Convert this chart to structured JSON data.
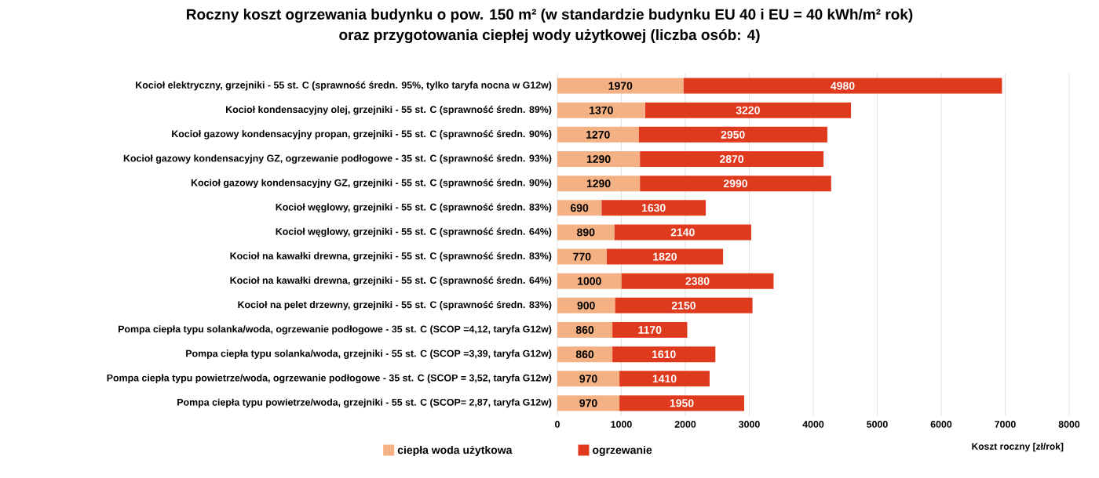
{
  "chart_data": {
    "type": "bar",
    "orientation": "horizontal",
    "stacked": true,
    "title": "Roczny koszt ogrzewania budynku o pow. 150 m²  (w standardzie budynku EU 40 i EU = 40 kWh/m² rok)",
    "subtitle": "oraz przygotowania ciepłej wody użytkowej (liczba osób: 4)",
    "xlabel": "Koszt roczny [zł/rok]",
    "categories": [
      "Kocioł  elektryczny,  grzejniki - 55 st. C  (sprawność średn. 95%, tylko taryfa nocna w G12w)",
      "Kocioł  kondensacyjny olej,  grzejniki - 55 st. C (sprawność średn. 89%)",
      "Kocioł gazowy kondensacyjny propan, grzejniki - 55 st. C (sprawność średn. 90%)",
      "Kocioł gazowy kondensacyjny GZ, ogrzewanie podłogowe - 35 st. C (sprawność średn. 93%)",
      "Kocioł gazowy kondensacyjny GZ, grzejniki - 55 st. C (sprawność średn. 90%)",
      "Kocioł węglowy,  grzejniki - 55 st. C (sprawność średn. 83%)",
      "Kocioł węglowy,  grzejniki - 55 st. C (sprawność średn. 64%)",
      "Kocioł na kawałki drewna, grzejniki - 55 st. C (sprawność średn. 83%)",
      "Kocioł na kawałki drewna, grzejniki - 55 st. C (sprawność średn. 64%)",
      "Kocioł na pelet drzewny, grzejniki - 55 st. C (sprawność średn. 83%)",
      "Pompa ciepła typu solanka/woda, ogrzewanie podłogowe - 35 st. C (SCOP =4,12, taryfa G12w)",
      "Pompa ciepła typu solanka/woda, grzejniki - 55 st. C (SCOP =3,39, taryfa G12w)",
      "Pompa ciepła typu powietrze/woda, ogrzewanie podłogowe - 35 st. C (SCOP = 3,52, taryfa G12w)",
      "Pompa ciepła typu powietrze/woda, grzejniki - 55 st. C (SCOP= 2,87, taryfa G12w)"
    ],
    "series": [
      {
        "name": "ciepła woda użytkowa",
        "color": "#f4b183",
        "values": [
          1970,
          1370,
          1270,
          1290,
          1290,
          690,
          890,
          770,
          1000,
          900,
          860,
          860,
          970,
          970
        ]
      },
      {
        "name": "ogrzewanie",
        "color": "#e03a1e",
        "values": [
          4980,
          3220,
          2950,
          2870,
          2990,
          1630,
          2140,
          1820,
          2380,
          2150,
          1170,
          1610,
          1410,
          1950
        ]
      }
    ],
    "xlim": [
      0,
      8000
    ],
    "xticks": [
      0,
      1000,
      2000,
      3000,
      4000,
      5000,
      6000,
      7000,
      8000
    ],
    "grid": "x",
    "legend": "bottom",
    "data_labels": true
  }
}
